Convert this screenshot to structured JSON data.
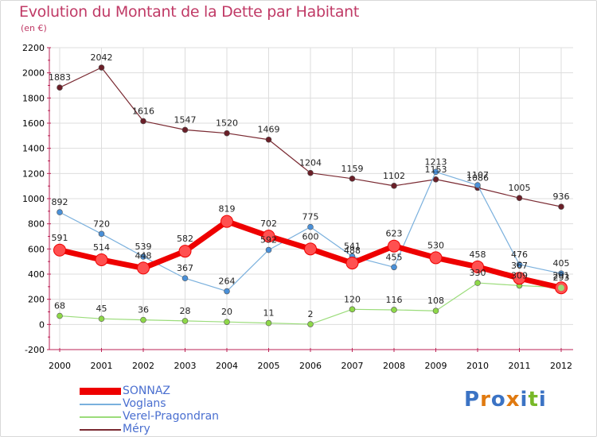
{
  "header": {
    "title": "Evolution du Montant de la Dette par Habitant",
    "subtitle": "(en €)"
  },
  "colors": {
    "title": "#c03a66",
    "legend_text": "#4a6fd0",
    "grid": "#dddddd",
    "axis": "#bb2255"
  },
  "logo": {
    "text": "Proxiti",
    "letter_colors": [
      "#3b73c4",
      "#e07a10",
      "#3b73c4",
      "#e07a10",
      "#3b73c4",
      "#78b828",
      "#3b73c4"
    ]
  },
  "chart_data": {
    "type": "line",
    "title": "Evolution du Montant de la Dette par Habitant",
    "subtitle": "(en €)",
    "categories": [
      "2000",
      "2001",
      "2002",
      "2003",
      "2004",
      "2005",
      "2006",
      "2007",
      "2008",
      "2009",
      "2010",
      "2011",
      "2012"
    ],
    "ylim": [
      -200,
      2200
    ],
    "yticks": [
      -200,
      0,
      200,
      400,
      600,
      800,
      1000,
      1200,
      1400,
      1600,
      1800,
      2000,
      2200
    ],
    "grid": true,
    "legend_position": "bottom-left",
    "series": [
      {
        "name": "SONNAZ",
        "color": "#ee0000",
        "marker_fill": "#ff5050",
        "width": 7,
        "marker_r": 7.5,
        "values": [
          591,
          514,
          448,
          582,
          819,
          702,
          600,
          488,
          623,
          530,
          458,
          367,
          291
        ]
      },
      {
        "name": "Voglans",
        "color": "#7ab0dd",
        "marker_fill": "#4a90d8",
        "width": 1.2,
        "marker_r": 3.5,
        "values": [
          892,
          720,
          539,
          367,
          264,
          592,
          775,
          541,
          455,
          1213,
          1107,
          476,
          405
        ]
      },
      {
        "name": "Verel-Pragondran",
        "color": "#9bdc7a",
        "marker_fill": "#8ed848",
        "width": 1.2,
        "marker_r": 3.5,
        "values": [
          68,
          45,
          36,
          28,
          20,
          11,
          2,
          120,
          116,
          108,
          330,
          309,
          293
        ]
      },
      {
        "name": "Méry",
        "color": "#7a2a32",
        "marker_fill": "#6a1f28",
        "width": 1.2,
        "marker_r": 3.5,
        "values": [
          1883,
          2042,
          1616,
          1547,
          1520,
          1469,
          1204,
          1159,
          1102,
          1153,
          1086,
          1005,
          936
        ]
      }
    ]
  }
}
